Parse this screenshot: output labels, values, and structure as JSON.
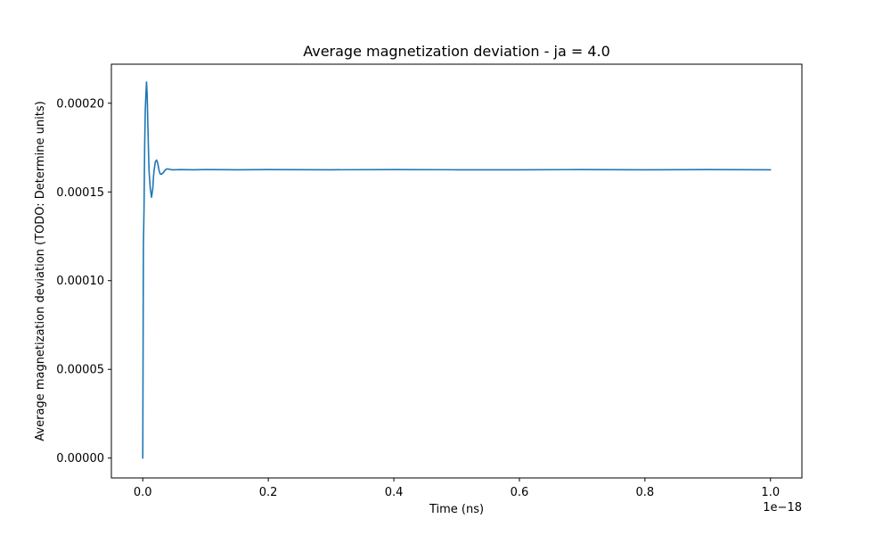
{
  "chart_data": {
    "type": "line",
    "title": "Average magnetization deviation - ja = 4.0",
    "xlabel": "Time (ns)",
    "ylabel": "Average magnetization deviation (TODO: Determine units)",
    "x_offset_label": "1e−18",
    "xlim": [
      -0.05,
      1.05
    ],
    "ylim": [
      -1.12e-05,
      0.000222
    ],
    "grid": false,
    "legend": "none",
    "line_color": "#1f77b4",
    "x_ticks": [
      {
        "value": 0.0,
        "label": "0.0"
      },
      {
        "value": 0.2,
        "label": "0.2"
      },
      {
        "value": 0.4,
        "label": "0.4"
      },
      {
        "value": 0.6,
        "label": "0.6"
      },
      {
        "value": 0.8,
        "label": "0.8"
      },
      {
        "value": 1.0,
        "label": "1.0"
      }
    ],
    "y_ticks": [
      {
        "value": 0.0,
        "label": "0.00000"
      },
      {
        "value": 5e-05,
        "label": "0.00005"
      },
      {
        "value": 0.0001,
        "label": "0.00010"
      },
      {
        "value": 0.00015,
        "label": "0.00015"
      },
      {
        "value": 0.0002,
        "label": "0.00020"
      }
    ],
    "series": [
      {
        "x": [
          0.0,
          0.001,
          0.002,
          0.003,
          0.004,
          0.005,
          0.006,
          0.007,
          0.008,
          0.009,
          0.01,
          0.012,
          0.014,
          0.016,
          0.017,
          0.018,
          0.02,
          0.022,
          0.024,
          0.026,
          0.028,
          0.03,
          0.033,
          0.036,
          0.039,
          0.042,
          0.046,
          0.05,
          0.06,
          0.08,
          0.1,
          0.15,
          0.2,
          0.3,
          0.4,
          0.5,
          0.6,
          0.7,
          0.8,
          0.9,
          1.0
        ],
        "y": [
          0.0,
          0.00012,
          0.00014,
          0.000175,
          0.000196,
          0.000205,
          0.000212,
          0.000205,
          0.00019,
          0.000175,
          0.000162,
          0.000152,
          0.000147,
          0.000152,
          0.000158,
          0.000162,
          0.000167,
          0.000168,
          0.000166,
          0.000162,
          0.00016,
          0.00016,
          0.000161,
          0.0001625,
          0.000163,
          0.0001628,
          0.0001625,
          0.0001625,
          0.0001626,
          0.0001625,
          0.0001626,
          0.0001625,
          0.0001626,
          0.0001625,
          0.0001626,
          0.0001625,
          0.0001625,
          0.0001626,
          0.0001625,
          0.0001626,
          0.0001625
        ]
      }
    ]
  }
}
